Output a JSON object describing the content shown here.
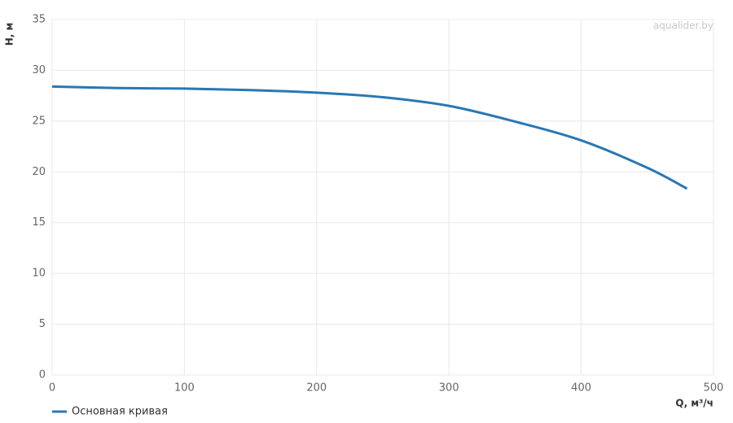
{
  "chart_data": {
    "type": "line",
    "watermark": "aqualider.by",
    "xlabel": "Q, м³/ч",
    "ylabel": "H, м",
    "x": [
      0,
      50,
      100,
      150,
      200,
      250,
      300,
      350,
      400,
      450,
      480
    ],
    "series": [
      {
        "name": "Основная кривая",
        "color": "#2878b4",
        "values": [
          28.4,
          28.25,
          28.2,
          28.05,
          27.8,
          27.35,
          26.5,
          24.95,
          23.1,
          20.4,
          18.35
        ]
      }
    ],
    "xlim": [
      0,
      500
    ],
    "xticks": [
      0,
      100,
      200,
      300,
      400,
      500
    ],
    "ylim": [
      0,
      35
    ],
    "yticks": [
      0,
      5,
      10,
      15,
      20,
      25,
      30,
      35
    ],
    "grid": true
  }
}
